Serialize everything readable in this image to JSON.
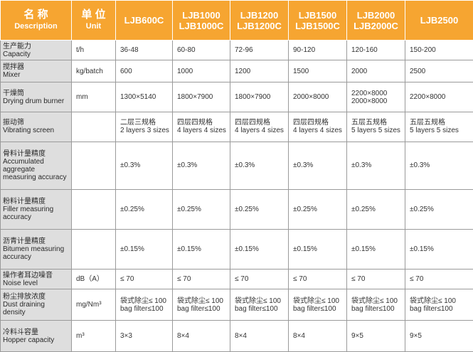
{
  "header": {
    "name_cn": "名 称",
    "name_en": "Description",
    "unit_cn": "单 位",
    "unit_en": "Unit",
    "models": [
      [
        "LJB600C"
      ],
      [
        "LJB1000",
        "LJB1000C"
      ],
      [
        "LJB1200",
        "LJB1200C"
      ],
      [
        "LJB1500",
        "LJB1500C"
      ],
      [
        "LJB2000",
        "LJB2000C"
      ],
      [
        "LJB2500"
      ]
    ]
  },
  "rows": [
    {
      "label_cn": "生产能力",
      "label_en": "Capacity",
      "unit": "t/h",
      "values": [
        [
          "36-48"
        ],
        [
          "60-80"
        ],
        [
          "72-96"
        ],
        [
          "90-120"
        ],
        [
          "120-160"
        ],
        [
          "150-200"
        ]
      ]
    },
    {
      "label_cn": "搅拌器",
      "label_en": "Mixer",
      "unit": "kg/batch",
      "values": [
        [
          "600"
        ],
        [
          "1000"
        ],
        [
          "1200"
        ],
        [
          "1500"
        ],
        [
          "2000"
        ],
        [
          "2500"
        ]
      ]
    },
    {
      "label_cn": "干燥筒",
      "label_en": "Drying drum burner",
      "unit": "mm",
      "values": [
        [
          "1300×5140"
        ],
        [
          "1800×7900"
        ],
        [
          "1800×7900"
        ],
        [
          "2000×8000"
        ],
        [
          "2200×8000",
          "2000×8000"
        ],
        [
          "2200×8000"
        ]
      ]
    },
    {
      "label_cn": "振动筛",
      "label_en": "Vibrating screen",
      "unit": "",
      "values": [
        [
          "二层三规格",
          "2 layers 3 sizes"
        ],
        [
          "四层四规格",
          "4 layers 4 sizes"
        ],
        [
          "四层四规格",
          "4 layers 4 sizes"
        ],
        [
          "四层四规格",
          "4 layers 4 sizes"
        ],
        [
          "五层五规格",
          "5 layers 5 sizes"
        ],
        [
          "五层五规格",
          "5 layers 5 sizes"
        ]
      ]
    },
    {
      "label_cn": "骨料计量精度",
      "label_en": "Accumulated aggregate measuring accuracy",
      "unit": "",
      "values": [
        [
          "±0.3%"
        ],
        [
          "±0.3%"
        ],
        [
          "±0.3%"
        ],
        [
          "±0.3%"
        ],
        [
          "±0.3%"
        ],
        [
          "±0.3%"
        ]
      ]
    },
    {
      "label_cn": "粉料计量精度",
      "label_en": "Filler measuring accuracy",
      "unit": "",
      "values": [
        [
          "±0.25%"
        ],
        [
          "±0.25%"
        ],
        [
          "±0.25%"
        ],
        [
          "±0.25%"
        ],
        [
          "±0.25%"
        ],
        [
          "±0.25%"
        ]
      ]
    },
    {
      "label_cn": "沥青计量精度",
      "label_en": "Bitumen measuring accuracy",
      "unit": "",
      "values": [
        [
          "±0.15%"
        ],
        [
          "±0.15%"
        ],
        [
          "±0.15%"
        ],
        [
          "±0.15%"
        ],
        [
          "±0.15%"
        ],
        [
          "±0.15%"
        ]
      ]
    },
    {
      "label_cn": "操作者耳边噪音",
      "label_en": "Noise level",
      "unit": "dB（A）",
      "values": [
        [
          "≤ 70"
        ],
        [
          "≤ 70"
        ],
        [
          "≤ 70"
        ],
        [
          "≤ 70"
        ],
        [
          "≤ 70"
        ],
        [
          "≤ 70"
        ]
      ]
    },
    {
      "label_cn": "粉尘排放浓度",
      "label_en": "Dust draining density",
      "unit": "mg/Nm³",
      "values": [
        [
          "袋式除尘≤ 100",
          "bag filter≤100"
        ],
        [
          "袋式除尘≤ 100",
          "bag filter≤100"
        ],
        [
          "袋式除尘≤ 100",
          "bag filter≤100"
        ],
        [
          "袋式除尘≤ 100",
          "bag filter≤100"
        ],
        [
          "袋式除尘≤ 100",
          "bag filter≤100"
        ],
        [
          "袋式除尘≤ 100",
          "bag filter≤100"
        ]
      ]
    },
    {
      "label_cn": "冷料斗容量",
      "label_en": "Hopper capacity",
      "unit": "m³",
      "values": [
        [
          "3×3"
        ],
        [
          "8×4"
        ],
        [
          "8×4"
        ],
        [
          "8×4"
        ],
        [
          "9×5"
        ],
        [
          "9×5"
        ]
      ]
    }
  ]
}
